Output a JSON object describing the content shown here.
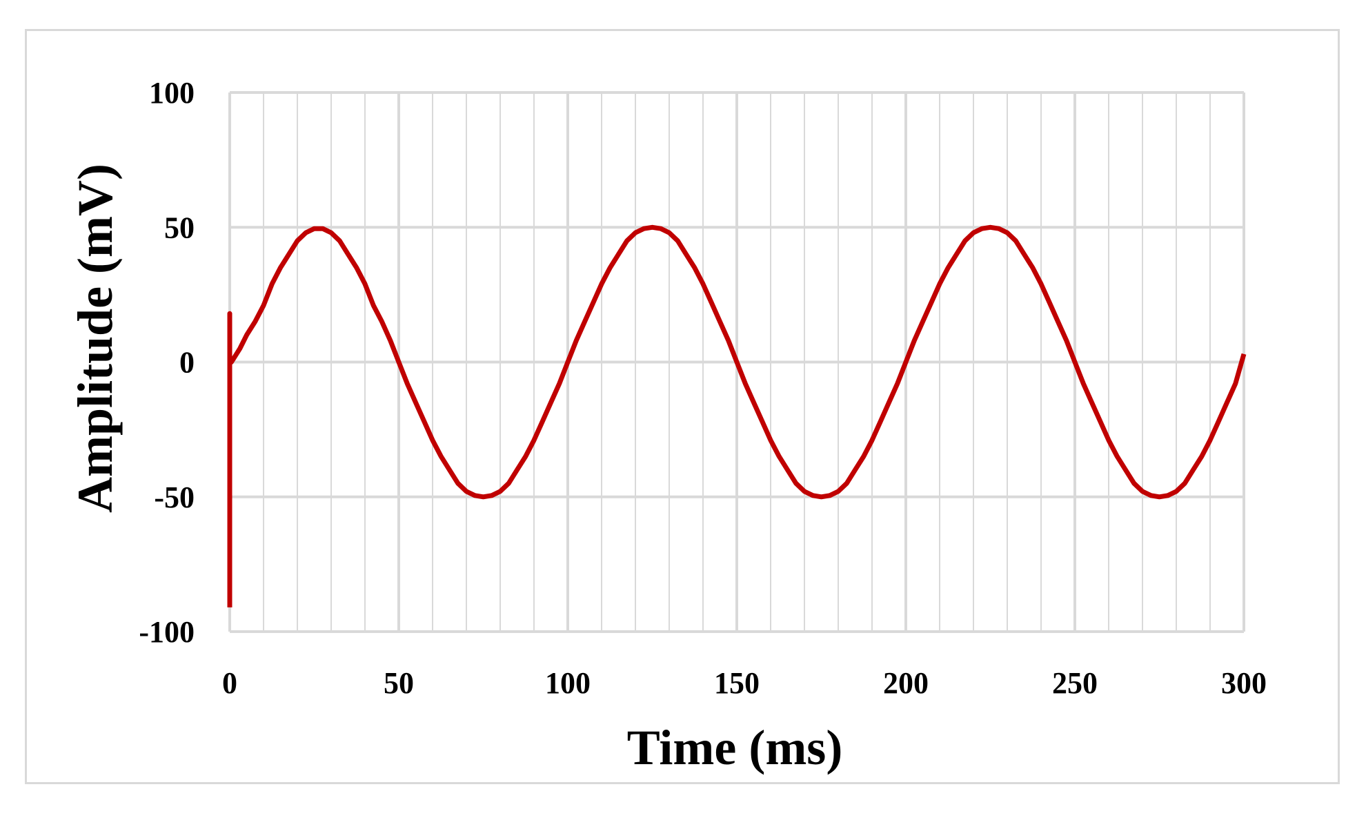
{
  "chart_data": {
    "type": "line",
    "xlabel": "Time (ms)",
    "ylabel": "Amplitude (mV)",
    "xlim": [
      0,
      300
    ],
    "ylim": [
      -100,
      100
    ],
    "x_ticks": [
      "0",
      "50",
      "100",
      "150",
      "200",
      "250",
      "300"
    ],
    "y_ticks": [
      "100",
      "50",
      "0",
      "-50",
      "-100"
    ],
    "x_minor_step": 10,
    "grid": true,
    "legend": "none",
    "colors": {
      "series": "#c00000",
      "grid": "#d9d9d9",
      "frame": "#d9d9d9"
    },
    "series": [
      {
        "color": "#c00000",
        "points": [
          [
            0,
            -91
          ],
          [
            0,
            18
          ],
          [
            0,
            0
          ],
          [
            0.5,
            0
          ],
          [
            1,
            1
          ],
          [
            2,
            3
          ],
          [
            3,
            5
          ],
          [
            5,
            10
          ],
          [
            7.5,
            15
          ],
          [
            10,
            21
          ],
          [
            12.5,
            29
          ],
          [
            15,
            35
          ],
          [
            17.5,
            40
          ],
          [
            20,
            45
          ],
          [
            22.5,
            48
          ],
          [
            25,
            49.5
          ],
          [
            27.5,
            49.5
          ],
          [
            30,
            48
          ],
          [
            32.5,
            45
          ],
          [
            35,
            40
          ],
          [
            37.5,
            35
          ],
          [
            40,
            29
          ],
          [
            42.5,
            21
          ],
          [
            45,
            15
          ],
          [
            47.5,
            8
          ],
          [
            50,
            0
          ],
          [
            52.5,
            -8
          ],
          [
            55,
            -15
          ],
          [
            57.5,
            -22
          ],
          [
            60,
            -29
          ],
          [
            62.5,
            -35
          ],
          [
            65,
            -40
          ],
          [
            67.5,
            -45
          ],
          [
            70,
            -48
          ],
          [
            72.5,
            -49.5
          ],
          [
            75,
            -50
          ],
          [
            77.5,
            -49.5
          ],
          [
            80,
            -48
          ],
          [
            82.5,
            -45
          ],
          [
            85,
            -40
          ],
          [
            87.5,
            -35
          ],
          [
            90,
            -29
          ],
          [
            92.5,
            -22
          ],
          [
            95,
            -15
          ],
          [
            97.5,
            -8
          ],
          [
            100,
            0
          ],
          [
            102.5,
            8
          ],
          [
            105,
            15
          ],
          [
            107.5,
            22
          ],
          [
            110,
            29
          ],
          [
            112.5,
            35
          ],
          [
            115,
            40
          ],
          [
            117.5,
            45
          ],
          [
            120,
            48
          ],
          [
            122.5,
            49.5
          ],
          [
            125,
            50
          ],
          [
            127.5,
            49.5
          ],
          [
            130,
            48
          ],
          [
            132.5,
            45
          ],
          [
            135,
            40
          ],
          [
            137.5,
            35
          ],
          [
            140,
            29
          ],
          [
            142.5,
            22
          ],
          [
            145,
            15
          ],
          [
            147.5,
            8
          ],
          [
            150,
            0
          ],
          [
            152.5,
            -8
          ],
          [
            155,
            -15
          ],
          [
            157.5,
            -22
          ],
          [
            160,
            -29
          ],
          [
            162.5,
            -35
          ],
          [
            165,
            -40
          ],
          [
            167.5,
            -45
          ],
          [
            170,
            -48
          ],
          [
            172.5,
            -49.5
          ],
          [
            175,
            -50
          ],
          [
            177.5,
            -49.5
          ],
          [
            180,
            -48
          ],
          [
            182.5,
            -45
          ],
          [
            185,
            -40
          ],
          [
            187.5,
            -35
          ],
          [
            190,
            -29
          ],
          [
            192.5,
            -22
          ],
          [
            195,
            -15
          ],
          [
            197.5,
            -8
          ],
          [
            200,
            0
          ],
          [
            202.5,
            8
          ],
          [
            205,
            15
          ],
          [
            207.5,
            22
          ],
          [
            210,
            29
          ],
          [
            212.5,
            35
          ],
          [
            215,
            40
          ],
          [
            217.5,
            45
          ],
          [
            220,
            48
          ],
          [
            222.5,
            49.5
          ],
          [
            225,
            50
          ],
          [
            227.5,
            49.5
          ],
          [
            230,
            48
          ],
          [
            232.5,
            45
          ],
          [
            235,
            40
          ],
          [
            237.5,
            35
          ],
          [
            240,
            29
          ],
          [
            242.5,
            22
          ],
          [
            245,
            15
          ],
          [
            247.5,
            8
          ],
          [
            250,
            0
          ],
          [
            252.5,
            -8
          ],
          [
            255,
            -15
          ],
          [
            257.5,
            -22
          ],
          [
            260,
            -29
          ],
          [
            262.5,
            -35
          ],
          [
            265,
            -40
          ],
          [
            267.5,
            -45
          ],
          [
            270,
            -48
          ],
          [
            272.5,
            -49.5
          ],
          [
            275,
            -50
          ],
          [
            277.5,
            -49.5
          ],
          [
            280,
            -48
          ],
          [
            282.5,
            -45
          ],
          [
            285,
            -40
          ],
          [
            287.5,
            -35
          ],
          [
            290,
            -29
          ],
          [
            292.5,
            -22
          ],
          [
            295,
            -15
          ],
          [
            297.5,
            -8
          ],
          [
            300,
            3
          ]
        ]
      }
    ]
  }
}
